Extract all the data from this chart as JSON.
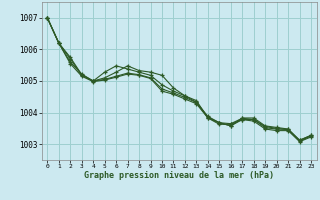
{
  "title": "Graphe pression niveau de la mer (hPa)",
  "background_color": "#cce9f0",
  "grid_color": "#9ecfcf",
  "line_color": "#2d5a27",
  "xlim": [
    -0.5,
    23.5
  ],
  "ylim": [
    1002.5,
    1007.5
  ],
  "yticks": [
    1003,
    1004,
    1005,
    1006,
    1007
  ],
  "xticks": [
    0,
    1,
    2,
    3,
    4,
    5,
    6,
    7,
    8,
    9,
    10,
    11,
    12,
    13,
    14,
    15,
    16,
    17,
    18,
    19,
    20,
    21,
    22,
    23
  ],
  "series": [
    [
      1007.0,
      1006.2,
      1005.75,
      1005.2,
      1005.0,
      1005.05,
      1005.15,
      1005.25,
      1005.2,
      1005.1,
      1004.75,
      1004.62,
      1004.48,
      1004.32,
      1003.85,
      1003.68,
      1003.65,
      1003.82,
      1003.78,
      1003.52,
      1003.48,
      1003.47,
      1003.12,
      1003.28
    ],
    [
      1007.0,
      1006.2,
      1005.7,
      1005.18,
      1005.0,
      1005.28,
      1005.48,
      1005.38,
      1005.28,
      1005.18,
      1004.88,
      1004.68,
      1004.53,
      1004.33,
      1003.88,
      1003.68,
      1003.58,
      1003.83,
      1003.83,
      1003.58,
      1003.53,
      1003.48,
      1003.13,
      1003.28
    ],
    [
      1007.0,
      1006.2,
      1005.6,
      1005.22,
      1005.0,
      1005.1,
      1005.28,
      1005.48,
      1005.33,
      1005.28,
      1005.18,
      1004.78,
      1004.53,
      1004.38,
      1003.83,
      1003.68,
      1003.58,
      1003.78,
      1003.78,
      1003.56,
      1003.5,
      1003.46,
      1003.1,
      1003.26
    ],
    [
      1007.0,
      1006.2,
      1005.55,
      1005.15,
      1004.98,
      1005.03,
      1005.12,
      1005.22,
      1005.18,
      1005.08,
      1004.68,
      1004.58,
      1004.43,
      1004.28,
      1003.83,
      1003.63,
      1003.63,
      1003.78,
      1003.73,
      1003.48,
      1003.43,
      1003.43,
      1003.08,
      1003.23
    ]
  ]
}
